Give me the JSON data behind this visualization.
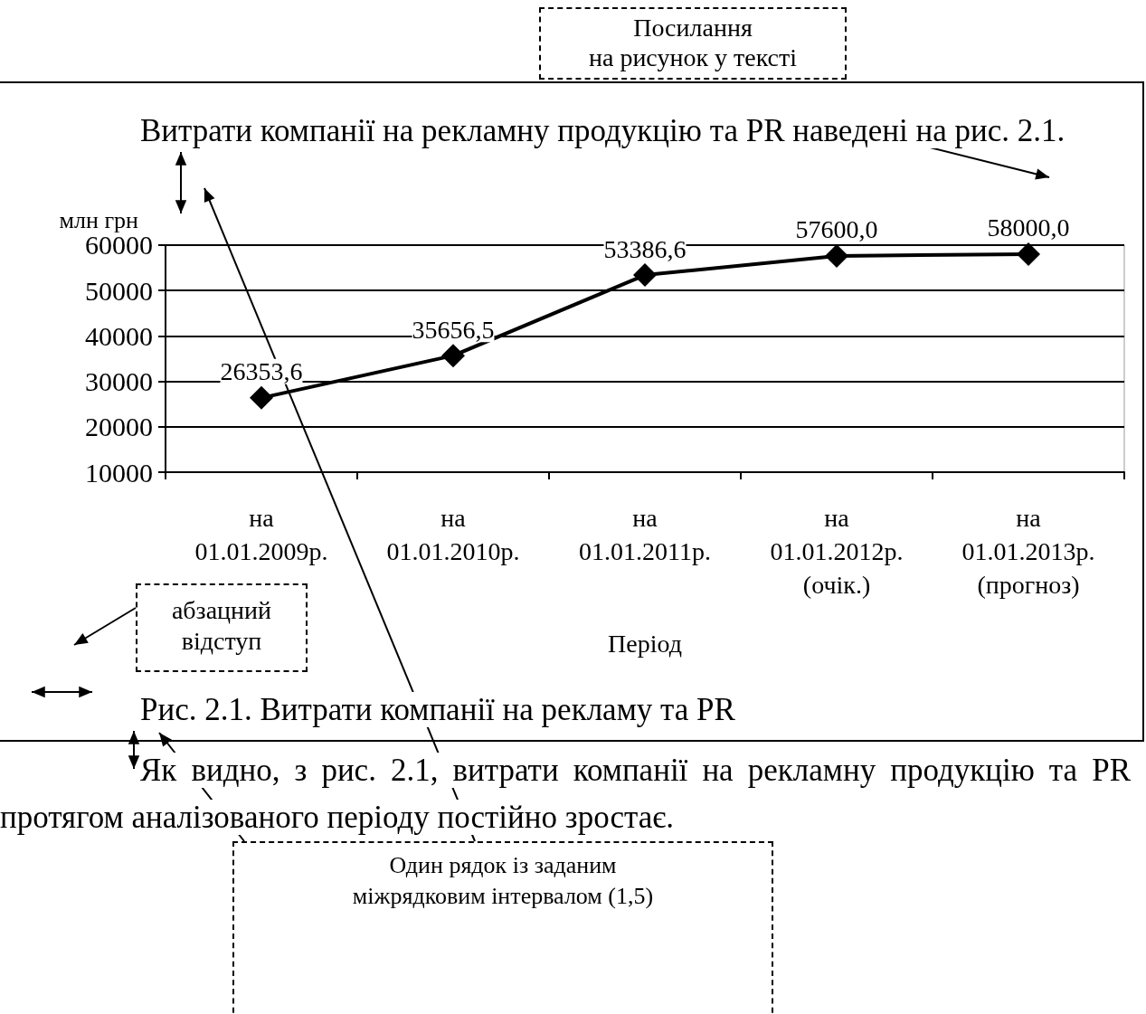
{
  "chart_data": {
    "type": "line",
    "title": "Рис. 2.1. Витрати компанії на рекламу та PR",
    "xlabel": "Період",
    "ylabel": "млн грн",
    "categories": [
      "на\n01.01.2009р.",
      "на\n01.01.2010р.",
      "на\n01.01.2011р.",
      "на\n01.01.2012р.\n(очік.)",
      "на\n01.01.2013р.\n(прогноз)"
    ],
    "series": [
      {
        "color": "#000000",
        "values": [
          26353.6,
          35656.5,
          53386.6,
          57600.0,
          58000.0
        ],
        "value_labels": [
          "26353,6",
          "35656,5",
          "53386,6",
          "57600,0",
          "58000,0"
        ]
      }
    ],
    "ylim": [
      10000,
      60000
    ],
    "yticks": [
      10000,
      20000,
      30000,
      40000,
      50000,
      60000
    ],
    "grid": "y",
    "marker": "diamond",
    "line_style": "solid",
    "annotations": [
      "Посилання\nна рисунок у тексті",
      "Витрати компанії на рекламну продукцію та PR наведені на рис. 2.1.",
      "абзацний\nвідступ",
      "Як видно, з рис. 2.1, витрати компанії на рекламну продукцію та PR протягом аналізованого періоду постійно зростає.",
      "Один рядок із заданим\nміжрядковим інтервалом (1,5)"
    ]
  }
}
